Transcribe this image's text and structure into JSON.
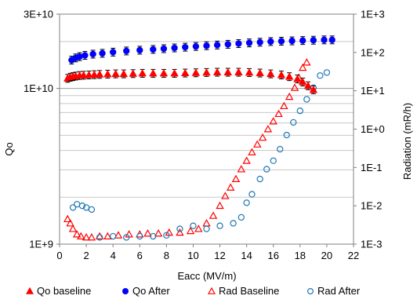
{
  "chart_data": {
    "type": "scatter",
    "xlabel": "Eacc (MV/m)",
    "ylabel": "Qo",
    "y2label": "Radiation (mR/h)",
    "xlim": [
      0,
      22
    ],
    "ylim": [
      1000000000,
      30000000000
    ],
    "y2lim": [
      0.001,
      1000
    ],
    "log_y": true,
    "log_y2": true,
    "grid": true,
    "legend_position": "bottom",
    "x_ticks": [
      "0",
      "2",
      "4",
      "6",
      "8",
      "10",
      "12",
      "14",
      "16",
      "18",
      "20",
      "22"
    ],
    "y_ticks": [
      {
        "label": "1E+9",
        "value": 1000000000
      },
      {
        "label": "1E+10",
        "value": 10000000000
      },
      {
        "label": "3E+10",
        "value": 30000000000
      }
    ],
    "y2_ticks": [
      {
        "label": "1E-3",
        "value": 0.001
      },
      {
        "label": "1E-2",
        "value": 0.01
      },
      {
        "label": "1E-1",
        "value": 0.1
      },
      {
        "label": "1E+0",
        "value": 1
      },
      {
        "label": "1E+1",
        "value": 10
      },
      {
        "label": "1E+2",
        "value": 100
      },
      {
        "label": "1E+3",
        "value": 1000
      }
    ],
    "series": [
      {
        "name": "Qo baseline",
        "axis": "left",
        "marker": "triangle-filled",
        "color": "#ff0000",
        "error_bars": true,
        "x": [
          0.6,
          0.8,
          1.0,
          1.2,
          1.5,
          1.8,
          2.2,
          2.6,
          3.0,
          3.6,
          4.2,
          4.8,
          5.5,
          6.2,
          7.0,
          7.8,
          8.6,
          9.4,
          10.2,
          11.0,
          11.8,
          12.6,
          13.4,
          14.2,
          15.0,
          15.8,
          16.6,
          17.2,
          17.8,
          18.2,
          18.6,
          19.0
        ],
        "y": [
          11600000000,
          11800000000,
          11900000000,
          12000000000,
          12100000000,
          12150000000,
          12200000000,
          12250000000,
          12300000000,
          12350000000,
          12400000000,
          12400000000,
          12450000000,
          12500000000,
          12500000000,
          12500000000,
          12500000000,
          12550000000,
          12600000000,
          12650000000,
          12700000000,
          12700000000,
          12700000000,
          12650000000,
          12550000000,
          12400000000,
          12200000000,
          11900000000,
          11500000000,
          11000000000,
          10400000000,
          9800000000
        ]
      },
      {
        "name": "Qo After",
        "axis": "left",
        "marker": "circle-filled",
        "color": "#0000ff",
        "error_bars": true,
        "x": [
          0.9,
          1.2,
          1.5,
          1.9,
          2.5,
          3.2,
          4.0,
          5.0,
          6.0,
          7.0,
          7.8,
          8.6,
          9.4,
          10.2,
          11.0,
          11.8,
          12.6,
          13.4,
          14.2,
          15.0,
          15.8,
          16.6,
          17.4,
          18.2,
          19.0,
          19.8,
          20.4
        ],
        "y": [
          15200000000,
          15700000000,
          16000000000,
          16300000000,
          16600000000,
          16800000000,
          17100000000,
          17400000000,
          17600000000,
          17800000000,
          18000000000,
          18200000000,
          18400000000,
          18600000000,
          18800000000,
          19000000000,
          19200000000,
          19400000000,
          19600000000,
          19800000000,
          20000000000,
          20100000000,
          20200000000,
          20300000000,
          20400000000,
          20500000000,
          20500000000
        ]
      },
      {
        "name": "Rad Baseline",
        "axis": "right",
        "marker": "triangle-open",
        "color": "#ff0000",
        "x": [
          0.6,
          0.8,
          1.0,
          1.3,
          1.6,
          2.0,
          2.4,
          3.0,
          3.6,
          4.4,
          5.2,
          6.0,
          6.6,
          7.4,
          8.2,
          9.0,
          9.8,
          10.4,
          11.0,
          11.5,
          12.0,
          12.4,
          12.8,
          13.2,
          13.6,
          14.0,
          14.4,
          14.8,
          15.2,
          15.6,
          16.0,
          16.4,
          16.8,
          17.2,
          17.6,
          17.9,
          18.2,
          18.5
        ],
        "y": [
          0.0045,
          0.0035,
          0.0025,
          0.0018,
          0.0016,
          0.0015,
          0.0015,
          0.0016,
          0.0016,
          0.0017,
          0.0018,
          0.0018,
          0.0019,
          0.0019,
          0.002,
          0.002,
          0.0022,
          0.0025,
          0.0035,
          0.0055,
          0.01,
          0.018,
          0.03,
          0.05,
          0.09,
          0.15,
          0.25,
          0.4,
          0.6,
          1.0,
          1.6,
          2.5,
          4.0,
          7.0,
          12.0,
          22.0,
          40.0,
          55.0
        ]
      },
      {
        "name": "Rad After",
        "axis": "right",
        "marker": "circle-open",
        "color": "#1f77b4",
        "x": [
          1.0,
          1.3,
          1.7,
          2.0,
          2.4,
          3.0,
          4.0,
          5.0,
          6.0,
          7.0,
          8.0,
          9.0,
          10.0,
          11.0,
          12.0,
          13.0,
          13.6,
          14.0,
          14.4,
          15.0,
          15.5,
          16.0,
          16.5,
          17.0,
          17.5,
          18.0,
          18.5,
          19.0,
          19.5,
          20.0
        ],
        "y": [
          0.009,
          0.011,
          0.01,
          0.009,
          0.008,
          0.0015,
          0.0016,
          0.0015,
          0.0016,
          0.0016,
          0.0017,
          0.0025,
          0.003,
          0.0025,
          0.003,
          0.0035,
          0.005,
          0.012,
          0.02,
          0.05,
          0.09,
          0.15,
          0.3,
          0.7,
          1.5,
          3.0,
          6.0,
          12.0,
          25.0,
          30.0
        ]
      }
    ]
  }
}
